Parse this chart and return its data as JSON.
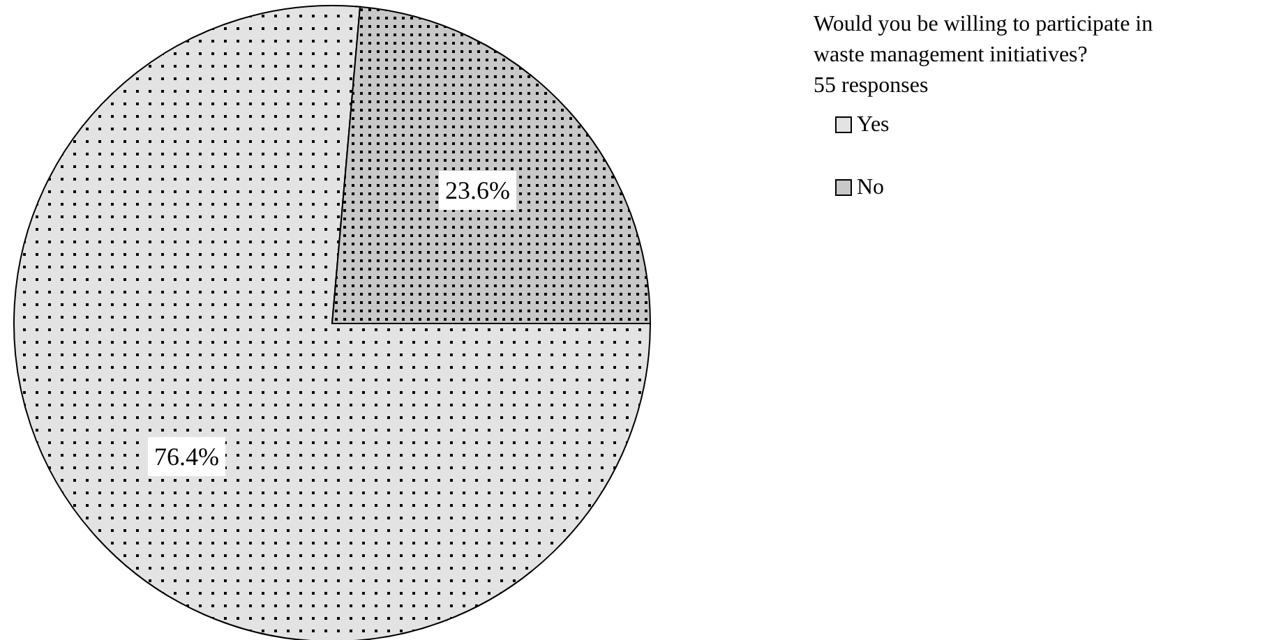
{
  "chart_data": {
    "type": "pie",
    "title": "Would you be willing to participate in waste management initiatives?",
    "subtitle": "55 responses",
    "categories": [
      "Yes",
      "No"
    ],
    "values": [
      76.4,
      23.6
    ],
    "colors": [
      "#e3e3e3",
      "#c8c8c8"
    ],
    "value_labels": [
      "76.4%",
      "23.6%"
    ],
    "legend": "right"
  }
}
